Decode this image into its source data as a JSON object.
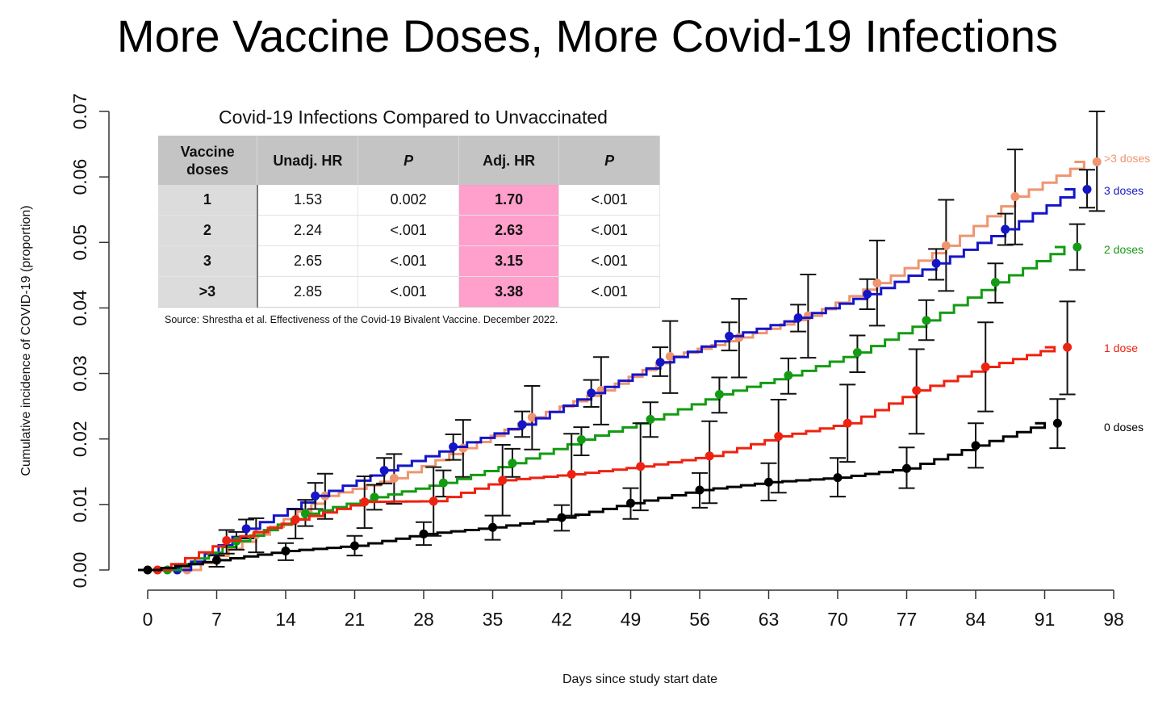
{
  "title": "More Vaccine Doses, More Covid-19 Infections",
  "table": {
    "title": "Covid-19 Infections Compared to Unvaccinated",
    "headers": [
      "Vaccine doses",
      "Unadj. HR",
      "P",
      "Adj. HR",
      "P"
    ],
    "rows": [
      {
        "doses": "1",
        "unadj_hr": "1.53",
        "p1": "0.002",
        "adj_hr": "1.70",
        "p2": "<.001"
      },
      {
        "doses": "2",
        "unadj_hr": "2.24",
        "p1": "<.001",
        "adj_hr": "2.63",
        "p2": "<.001"
      },
      {
        "doses": "3",
        "unadj_hr": "2.65",
        "p1": "<.001",
        "adj_hr": "3.15",
        "p2": "<.001"
      },
      {
        "doses": ">3",
        "unadj_hr": "2.85",
        "p1": "<.001",
        "adj_hr": "3.38",
        "p2": "<.001"
      }
    ],
    "highlight_color": "#ff9fcb",
    "source": "Source: Shrestha et al. Effectiveness of the Covid-19 Bivalent Vaccine. December 2022."
  },
  "chart_data": {
    "type": "line",
    "subtype": "step cumulative incidence with point estimates and error bars",
    "xlabel": "Days since study start date",
    "ylabel": "Cumulative incidence of COVID-19 (proportion)",
    "xlim": [
      0,
      98
    ],
    "ylim": [
      0,
      0.07
    ],
    "xticks": [
      "0",
      "7",
      "14",
      "21",
      "28",
      "35",
      "42",
      "49",
      "56",
      "63",
      "70",
      "77",
      "84",
      "91",
      "98"
    ],
    "yticks": [
      "0.00",
      "0.01",
      "0.02",
      "0.03",
      "0.04",
      "0.05",
      "0.06",
      "0.07"
    ],
    "grid": false,
    "legend_placement": "right (labels at curve ends)",
    "series": [
      {
        "name": "0 doses",
        "color": "#000000",
        "x": [
          0,
          7,
          14,
          21,
          28,
          35,
          42,
          49,
          56,
          63,
          70,
          77,
          84,
          91
        ],
        "y": [
          0,
          0.0015,
          0.0029,
          0.0037,
          0.0055,
          0.0065,
          0.008,
          0.0102,
          0.0122,
          0.0134,
          0.0141,
          0.0155,
          0.019,
          0.0224
        ],
        "lower": [
          0,
          0.0005,
          0.0015,
          0.0022,
          0.0038,
          0.0046,
          0.006,
          0.0078,
          0.0095,
          0.0106,
          0.0112,
          0.0125,
          0.0156,
          0.0186
        ],
        "upper": [
          0,
          0.0022,
          0.0041,
          0.0052,
          0.0073,
          0.0083,
          0.0099,
          0.0125,
          0.0148,
          0.0163,
          0.0171,
          0.0187,
          0.0224,
          0.0261
        ]
      },
      {
        "name": "1 dose",
        "color": "#ee2211",
        "x": [
          1,
          8,
          15,
          22,
          29,
          36,
          43,
          50,
          57,
          64,
          71,
          78,
          85,
          92
        ],
        "y": [
          0,
          0.0045,
          0.0077,
          0.0104,
          0.0105,
          0.0137,
          0.0146,
          0.0158,
          0.0174,
          0.0204,
          0.0224,
          0.0274,
          0.031,
          0.034
        ],
        "lower": [
          0,
          0.0025,
          0.0048,
          0.0064,
          0.0052,
          0.0083,
          0.0083,
          0.0091,
          0.0102,
          0.0118,
          0.0165,
          0.0208,
          0.0242,
          0.0268
        ],
        "upper": [
          0,
          0.0061,
          0.0093,
          0.0143,
          0.0157,
          0.0191,
          0.0208,
          0.0224,
          0.0227,
          0.026,
          0.0283,
          0.0337,
          0.0378,
          0.041
        ]
      },
      {
        "name": "2 doses",
        "color": "#139b13",
        "x": [
          2,
          9,
          16,
          23,
          30,
          37,
          44,
          51,
          58,
          65,
          72,
          79,
          86,
          93
        ],
        "y": [
          0,
          0.0044,
          0.0086,
          0.0111,
          0.0133,
          0.0163,
          0.0199,
          0.023,
          0.0268,
          0.0297,
          0.0332,
          0.0381,
          0.0439,
          0.0493
        ],
        "lower": [
          0,
          0.0031,
          0.0067,
          0.0092,
          0.0112,
          0.0142,
          0.0175,
          0.0203,
          0.024,
          0.0269,
          0.0302,
          0.0351,
          0.0408,
          0.0458
        ],
        "upper": [
          0,
          0.0058,
          0.0107,
          0.013,
          0.0152,
          0.0185,
          0.0218,
          0.0256,
          0.0294,
          0.0323,
          0.0358,
          0.0412,
          0.0468,
          0.0528
        ]
      },
      {
        "name": "3 doses",
        "color": "#1515c8",
        "x": [
          3,
          10,
          17,
          24,
          31,
          38,
          45,
          52,
          59,
          66,
          73,
          80,
          87,
          94
        ],
        "y": [
          0,
          0.0063,
          0.0113,
          0.0152,
          0.0188,
          0.0222,
          0.027,
          0.0317,
          0.0357,
          0.0385,
          0.0421,
          0.0468,
          0.052,
          0.0581
        ],
        "lower": [
          0,
          0.0048,
          0.0093,
          0.0132,
          0.0168,
          0.0203,
          0.0249,
          0.0296,
          0.0335,
          0.0364,
          0.0398,
          0.0443,
          0.0496,
          0.0553
        ],
        "upper": [
          0,
          0.0077,
          0.0133,
          0.0171,
          0.0207,
          0.0242,
          0.029,
          0.034,
          0.0378,
          0.0405,
          0.0444,
          0.049,
          0.0544,
          0.0611
        ]
      },
      {
        "name": ">3 doses",
        "color": "#ef9570",
        "x": [
          4,
          11,
          18,
          25,
          32,
          39,
          46,
          53,
          60,
          67,
          74,
          81,
          88,
          95
        ],
        "y": [
          0,
          0.0054,
          0.0113,
          0.014,
          0.0186,
          0.0233,
          0.0274,
          0.0326,
          0.0355,
          0.0388,
          0.0438,
          0.0495,
          0.057,
          0.0623
        ],
        "lower": [
          0,
          0.0027,
          0.0078,
          0.0101,
          0.0142,
          0.0184,
          0.0222,
          0.027,
          0.0294,
          0.0324,
          0.0373,
          0.0426,
          0.0497,
          0.0548
        ],
        "upper": [
          0,
          0.0079,
          0.0147,
          0.0177,
          0.0229,
          0.0281,
          0.0325,
          0.038,
          0.0414,
          0.0451,
          0.0503,
          0.0565,
          0.0642,
          0.07
        ]
      }
    ],
    "legend": [
      {
        "label": ">3 doses",
        "color": "#ef9570"
      },
      {
        "label": "3 doses",
        "color": "#1515c8"
      },
      {
        "label": "2 doses",
        "color": "#139b13"
      },
      {
        "label": "1 dose",
        "color": "#ee2211"
      },
      {
        "label": "0 doses",
        "color": "#000000"
      }
    ]
  }
}
